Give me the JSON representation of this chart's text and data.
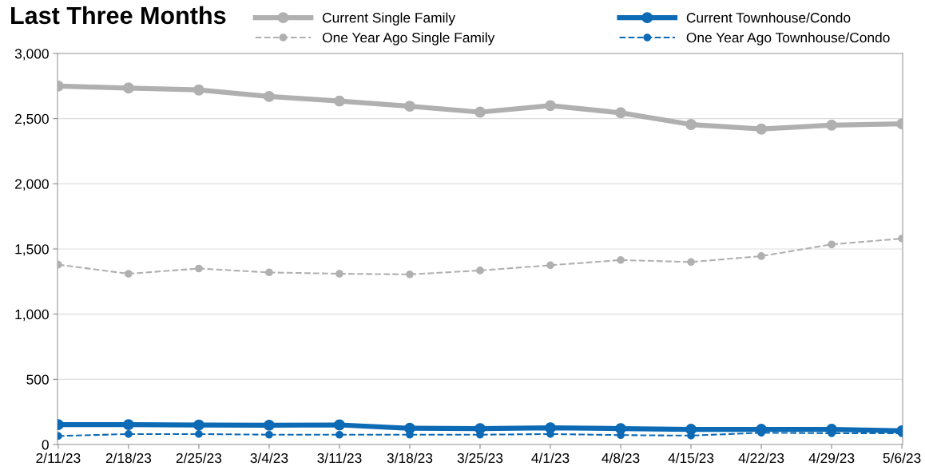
{
  "chart_data": {
    "type": "line",
    "title": "Last Three Months",
    "categories": [
      "2/11/23",
      "2/18/23",
      "2/25/23",
      "3/4/23",
      "3/11/23",
      "3/18/23",
      "3/25/23",
      "4/1/23",
      "4/8/23",
      "4/15/23",
      "4/22/23",
      "4/29/23",
      "5/6/23"
    ],
    "series": [
      {
        "name": "Current Single Family",
        "color": "#b0b0b0",
        "line_style": "solid",
        "values": [
          2750,
          2735,
          2720,
          2670,
          2635,
          2595,
          2550,
          2600,
          2545,
          2455,
          2420,
          2450,
          2460
        ]
      },
      {
        "name": "One Year Ago Single Family",
        "color": "#b0b0b0",
        "line_style": "dashed",
        "values": [
          1380,
          1310,
          1350,
          1320,
          1310,
          1305,
          1335,
          1375,
          1415,
          1400,
          1445,
          1535,
          1580
        ]
      },
      {
        "name": "Current Townhouse/Condo",
        "color": "#0d6ab5",
        "line_style": "solid",
        "values": [
          152,
          152,
          149,
          148,
          150,
          124,
          122,
          128,
          122,
          116,
          116,
          116,
          105
        ]
      },
      {
        "name": "One Year Ago Townhouse/Condo",
        "color": "#0d6ab5",
        "line_style": "dashed",
        "values": [
          65,
          80,
          80,
          75,
          75,
          75,
          75,
          80,
          72,
          68,
          90,
          86,
          86
        ]
      }
    ],
    "ylim": [
      0,
      3000
    ],
    "yticks": [
      {
        "value": 0,
        "label": "0"
      },
      {
        "value": 500,
        "label": "500"
      },
      {
        "value": 1000,
        "label": "1,000"
      },
      {
        "value": 1500,
        "label": "1,500"
      },
      {
        "value": 2000,
        "label": "2,000"
      },
      {
        "value": 2500,
        "label": "2,500"
      },
      {
        "value": 3000,
        "label": "3,000"
      }
    ],
    "grid": "y",
    "legend": "top right",
    "marker": "circle"
  }
}
